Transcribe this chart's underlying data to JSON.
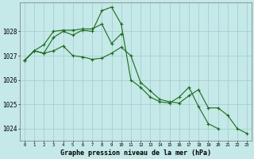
{
  "title": "Graphe pression niveau de la mer (hPa)",
  "background_color": "#c5e8e8",
  "grid_color": "#a0cccc",
  "line_color": "#1a6b1a",
  "ylim": [
    1023.5,
    1029.2
  ],
  "yticks": [
    1024,
    1025,
    1026,
    1027,
    1028
  ],
  "x_labels": [
    "0",
    "1",
    "2",
    "3",
    "4",
    "5",
    "6",
    "7",
    "8",
    "9",
    "10",
    "11",
    "12",
    "13",
    "14",
    "15",
    "16",
    "17",
    "18",
    "19",
    "20",
    "21",
    "22",
    "23"
  ],
  "series": [
    [
      1026.8,
      1027.2,
      1027.1,
      1027.75,
      1028.0,
      1027.85,
      1028.05,
      1028.0,
      1028.85,
      1029.0,
      1028.3,
      1026.0,
      1025.7,
      1025.3,
      1025.1,
      1025.05,
      1025.3,
      1025.7,
      1024.9,
      1024.2,
      1024.0,
      null,
      null,
      null
    ],
    [
      1026.8,
      1027.2,
      1027.45,
      1028.0,
      1028.05,
      1028.05,
      1028.1,
      1028.1,
      1028.3,
      1027.5,
      1027.9,
      null,
      null,
      null,
      null,
      null,
      null,
      null,
      null,
      null,
      null,
      null,
      null,
      null
    ],
    [
      1026.8,
      1027.2,
      1027.1,
      1027.2,
      1027.4,
      1027.0,
      1026.95,
      1026.85,
      1026.9,
      1027.1,
      1027.35,
      1027.0,
      1025.9,
      1025.55,
      1025.2,
      1025.1,
      1025.05,
      1025.35,
      1025.6,
      1024.85,
      1024.85,
      1024.55,
      1024.0,
      1023.8
    ]
  ],
  "figsize": [
    3.2,
    2.0
  ],
  "dpi": 100
}
